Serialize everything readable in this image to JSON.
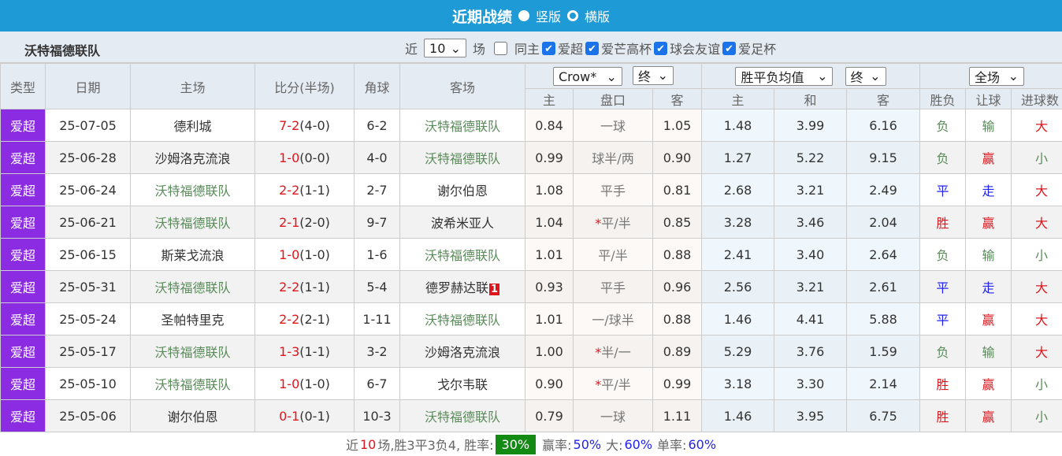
{
  "title": "近期战绩",
  "view_options": [
    {
      "label": "竖版",
      "selected": true
    },
    {
      "label": "横版",
      "selected": false
    }
  ],
  "team": "沃特福德联队",
  "filter": {
    "near": "近",
    "count": "10",
    "unit": "场",
    "same_home": {
      "label": "同主",
      "checked": false
    },
    "leagues": [
      {
        "label": "爱超",
        "checked": true
      },
      {
        "label": "爱芒高杯",
        "checked": true
      },
      {
        "label": "球会友谊",
        "checked": true
      },
      {
        "label": "爱足杯",
        "checked": true
      }
    ]
  },
  "headers": {
    "type": "类型",
    "date": "日期",
    "home": "主场",
    "score": "比分(半场)",
    "corner": "角球",
    "away": "客场",
    "odds_company": "Crow*",
    "odds_phase": "终",
    "avg_type": "胜平负均值",
    "avg_phase": "终",
    "scope": "全场",
    "sub": [
      "主",
      "盘口",
      "客",
      "主",
      "和",
      "客",
      "胜负",
      "让球",
      "进球数"
    ]
  },
  "rows": [
    {
      "type": "爱超",
      "date": "25-07-05",
      "home": "德利城",
      "ft": "7-2",
      "ht": "(4-0)",
      "corner": "6-2",
      "away": "沃特福德联队",
      "oh": "0.84",
      "line": "一球",
      "star": false,
      "oa": "1.05",
      "w": "1.48",
      "d": "3.99",
      "l": "6.16",
      "res": "负",
      "hc": "输",
      "ou": "大"
    },
    {
      "type": "爱超",
      "date": "25-06-28",
      "home": "沙姆洛克流浪",
      "ft": "1-0",
      "ht": "(0-0)",
      "corner": "4-0",
      "away": "沃特福德联队",
      "oh": "0.99",
      "line": "球半/两",
      "star": false,
      "oa": "0.90",
      "w": "1.27",
      "d": "5.22",
      "l": "9.15",
      "res": "负",
      "hc": "赢",
      "ou": "小"
    },
    {
      "type": "爱超",
      "date": "25-06-24",
      "home": "沃特福德联队",
      "ft": "2-2",
      "ht": "(1-1)",
      "corner": "2-7",
      "away": "谢尔伯恩",
      "oh": "1.08",
      "line": "平手",
      "star": false,
      "oa": "0.81",
      "w": "2.68",
      "d": "3.21",
      "l": "2.49",
      "res": "平",
      "hc": "走",
      "ou": "大"
    },
    {
      "type": "爱超",
      "date": "25-06-21",
      "home": "沃特福德联队",
      "ft": "2-1",
      "ht": "(2-0)",
      "corner": "9-7",
      "away": "波希米亚人",
      "oh": "1.04",
      "line": "平/半",
      "star": true,
      "oa": "0.85",
      "w": "3.28",
      "d": "3.46",
      "l": "2.04",
      "res": "胜",
      "hc": "赢",
      "ou": "大"
    },
    {
      "type": "爱超",
      "date": "25-06-15",
      "home": "斯莱戈流浪",
      "ft": "1-0",
      "ht": "(1-0)",
      "corner": "1-6",
      "away": "沃特福德联队",
      "oh": "1.01",
      "line": "平/半",
      "star": false,
      "oa": "0.88",
      "w": "2.41",
      "d": "3.40",
      "l": "2.64",
      "res": "负",
      "hc": "输",
      "ou": "小"
    },
    {
      "type": "爱超",
      "date": "25-05-31",
      "home": "沃特福德联队",
      "ft": "2-2",
      "ht": "(1-1)",
      "corner": "5-4",
      "away": "德罗赫达联",
      "red_card": "1",
      "oh": "0.93",
      "line": "平手",
      "star": false,
      "oa": "0.96",
      "w": "2.56",
      "d": "3.21",
      "l": "2.61",
      "res": "平",
      "hc": "走",
      "ou": "大"
    },
    {
      "type": "爱超",
      "date": "25-05-24",
      "home": "圣帕特里克",
      "ft": "2-2",
      "ht": "(2-1)",
      "corner": "1-11",
      "away": "沃特福德联队",
      "oh": "1.01",
      "line": "一/球半",
      "star": false,
      "oa": "0.88",
      "w": "1.46",
      "d": "4.41",
      "l": "5.88",
      "res": "平",
      "hc": "赢",
      "ou": "大"
    },
    {
      "type": "爱超",
      "date": "25-05-17",
      "home": "沃特福德联队",
      "ft": "1-3",
      "ht": "(1-1)",
      "corner": "3-2",
      "away": "沙姆洛克流浪",
      "oh": "1.00",
      "line": "半/一",
      "star": true,
      "oa": "0.89",
      "w": "5.29",
      "d": "3.76",
      "l": "1.59",
      "res": "负",
      "hc": "输",
      "ou": "大"
    },
    {
      "type": "爱超",
      "date": "25-05-10",
      "home": "沃特福德联队",
      "ft": "1-0",
      "ht": "(1-0)",
      "corner": "6-7",
      "away": "戈尔韦联",
      "oh": "0.90",
      "line": "平/半",
      "star": true,
      "oa": "0.99",
      "w": "3.18",
      "d": "3.30",
      "l": "2.14",
      "res": "胜",
      "hc": "赢",
      "ou": "小"
    },
    {
      "type": "爱超",
      "date": "25-05-06",
      "home": "谢尔伯恩",
      "ft": "0-1",
      "ht": "(0-1)",
      "corner": "10-3",
      "away": "沃特福德联队",
      "oh": "0.79",
      "line": "一球",
      "star": false,
      "oa": "1.11",
      "w": "1.46",
      "d": "3.95",
      "l": "6.75",
      "res": "胜",
      "hc": "赢",
      "ou": "小"
    }
  ],
  "summary": {
    "p1": "近",
    "n": "10",
    "p2": "场,胜3平3负4, 胜率:",
    "win_rate": "30%",
    "p3": "赢率:",
    "cover_rate": "50%",
    "p4": "大:",
    "over_rate": "60%",
    "p5": "单率:",
    "odd_rate": "60%"
  },
  "colors": {
    "header_bar": "#1e9ad6",
    "type_badge": "#8b2be2",
    "win": "#e0151c",
    "draw": "#2222ee",
    "loss": "#5a8a5a",
    "rate_badge": "#138a13"
  }
}
